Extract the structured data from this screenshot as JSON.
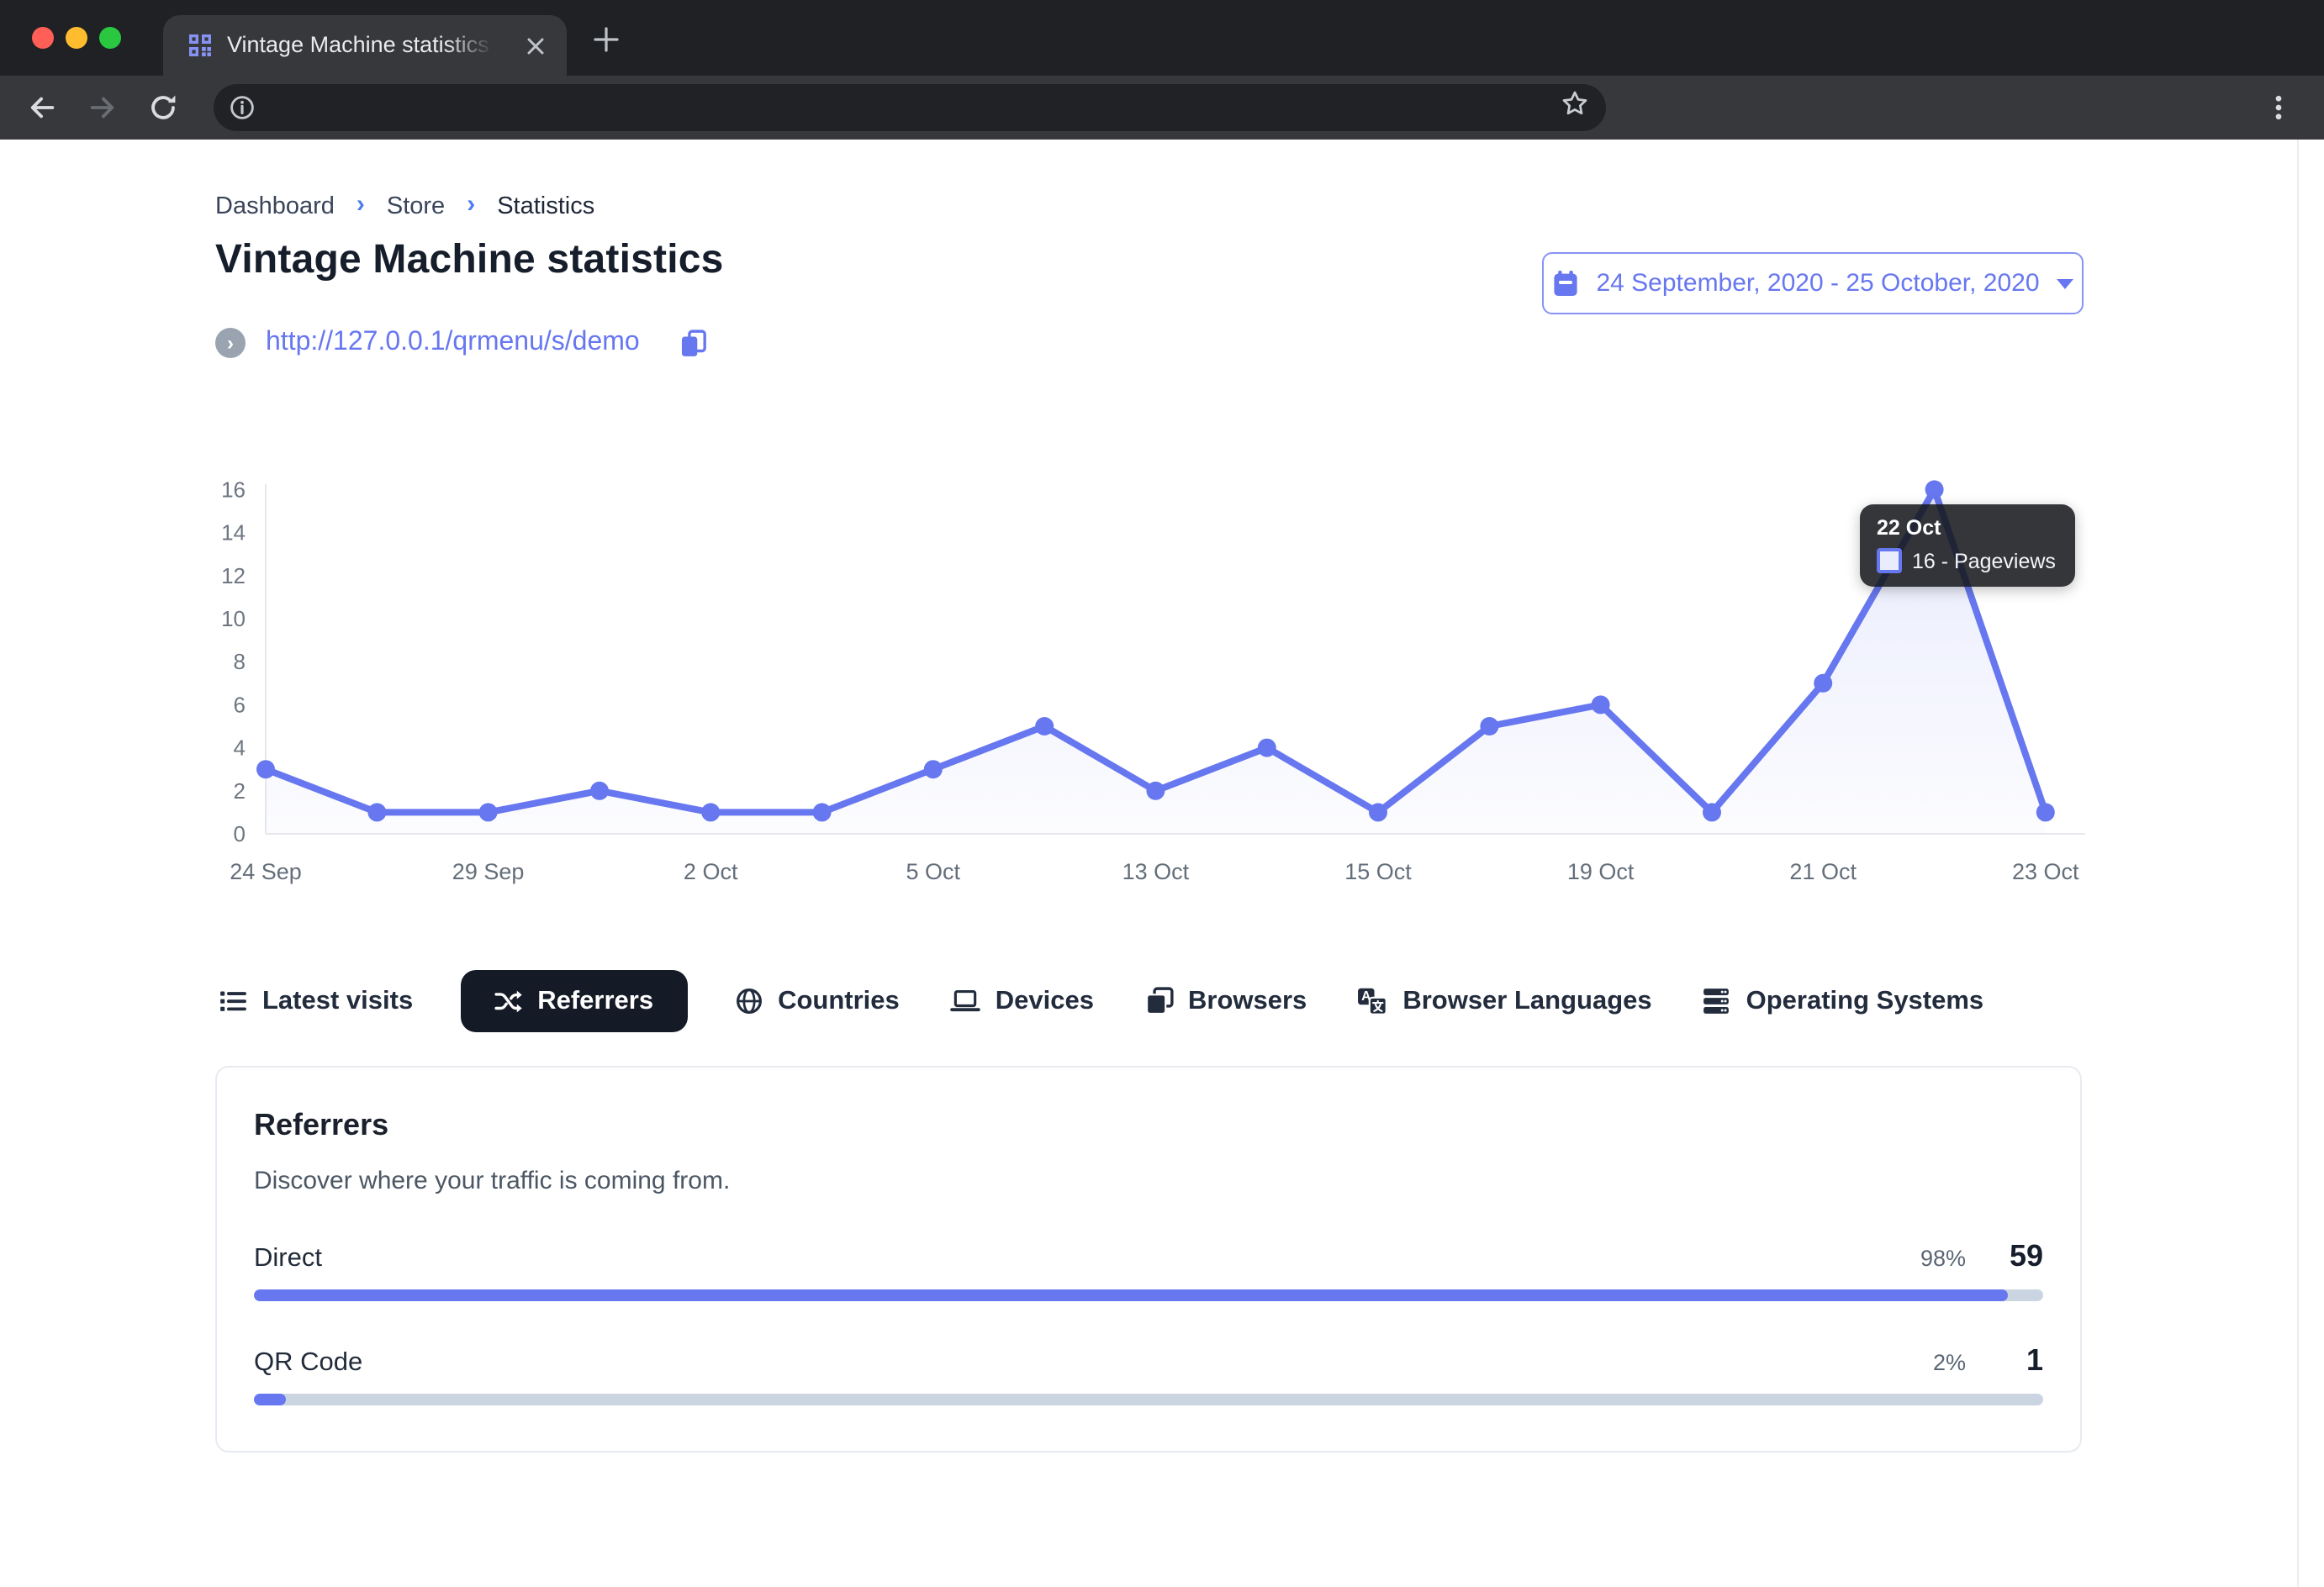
{
  "window": {
    "tab_title": "Vintage Machine statistics - Ea",
    "close_tab_label": "×",
    "new_tab_label": "+"
  },
  "breadcrumb": {
    "items": [
      "Dashboard",
      "Store",
      "Statistics"
    ],
    "separator": "›"
  },
  "header": {
    "title": "Vintage Machine statistics",
    "store_url": "http://127.0.0.1/qrmenu/s/demo",
    "date_range": "24 September, 2020 - 25 October, 2020"
  },
  "chart_data": {
    "type": "area",
    "series": [
      {
        "name": "Pageviews",
        "values": [
          3,
          1,
          1,
          2,
          1,
          1,
          3,
          5,
          2,
          4,
          1,
          5,
          6,
          1,
          7,
          16,
          1
        ]
      }
    ],
    "x_ticks": [
      {
        "index": 0,
        "label": "24 Sep"
      },
      {
        "index": 2,
        "label": "29 Sep"
      },
      {
        "index": 4,
        "label": "2 Oct"
      },
      {
        "index": 6,
        "label": "5 Oct"
      },
      {
        "index": 8,
        "label": "13 Oct"
      },
      {
        "index": 10,
        "label": "15 Oct"
      },
      {
        "index": 12,
        "label": "19 Oct"
      },
      {
        "index": 14,
        "label": "21 Oct"
      },
      {
        "index": 16,
        "label": "23 Oct"
      }
    ],
    "y_ticks": [
      0,
      2,
      4,
      6,
      8,
      10,
      12,
      14,
      16
    ],
    "ylim": [
      0,
      16
    ],
    "grid": false,
    "legend": "none",
    "line_color": "#6777ef",
    "tooltip": {
      "title": "22 Oct",
      "label": "16 - Pageviews",
      "point_index": 15
    }
  },
  "tabs": [
    {
      "label": "Latest visits",
      "icon": "list-icon",
      "active": false
    },
    {
      "label": "Referrers",
      "icon": "shuffle-icon",
      "active": true
    },
    {
      "label": "Countries",
      "icon": "globe-icon",
      "active": false
    },
    {
      "label": "Devices",
      "icon": "laptop-icon",
      "active": false
    },
    {
      "label": "Browsers",
      "icon": "windows-icon",
      "active": false
    },
    {
      "label": "Browser Languages",
      "icon": "translate-icon",
      "active": false
    },
    {
      "label": "Operating Systems",
      "icon": "server-icon",
      "active": false
    }
  ],
  "panel": {
    "title": "Referrers",
    "subtitle": "Discover where your traffic is coming from.",
    "rows": [
      {
        "label": "Direct",
        "percent": "98%",
        "count": "59",
        "fill_percent": 98
      },
      {
        "label": "QR Code",
        "percent": "2%",
        "count": "1",
        "fill_percent": 1.8
      }
    ]
  },
  "colors": {
    "primary": "#6777ef",
    "bar_track": "#cbd5e1",
    "active_tab_bg": "#141a26",
    "chrome_dark": "#1f2125",
    "chrome_mid": "#37383c"
  }
}
